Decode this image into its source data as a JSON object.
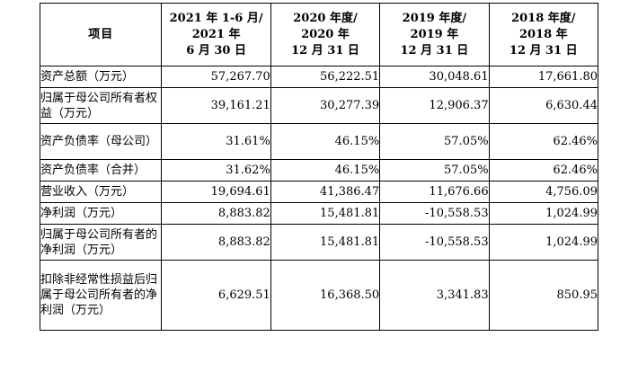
{
  "table": {
    "header": {
      "item": "项目",
      "col1": [
        "2021 年 1-6 月/",
        "2021 年",
        "6 月 30 日"
      ],
      "col2": [
        "2020 年度/",
        "2020 年",
        "12 月 31 日"
      ],
      "col3": [
        "2019 年度/",
        "2019 年",
        "12 月 31 日"
      ],
      "col4": [
        "2018 年度/",
        "2018 年",
        "12 月 31 日"
      ]
    },
    "rows": [
      {
        "label": "资产总额（万元）",
        "values": [
          "57,267.70",
          "56,222.51",
          "30,048.61",
          "17,661.80"
        ]
      },
      {
        "label": "归属于母公司所有者权益（万元）",
        "values": [
          "39,161.21",
          "30,277.39",
          "12,906.37",
          "6,630.44"
        ]
      },
      {
        "label": "资产负债率（母公司）",
        "values": [
          "31.61%",
          "46.15%",
          "57.05%",
          "62.46%"
        ]
      },
      {
        "label": "资产负债率（合并）",
        "values": [
          "31.62%",
          "46.15%",
          "57.05%",
          "62.46%"
        ]
      },
      {
        "label": "营业收入（万元）",
        "values": [
          "19,694.61",
          "41,386.47",
          "11,676.66",
          "4,756.09"
        ]
      },
      {
        "label": "净利润（万元）",
        "values": [
          "8,883.82",
          "15,481.81",
          "-10,558.53",
          "1,024.99"
        ]
      },
      {
        "label": "归属于母公司所有者的净利润（万元）",
        "values": [
          "8,883.82",
          "15,481.81",
          "-10,558.53",
          "1,024.99"
        ]
      },
      {
        "label": "扣除非经常性损益后归属于母公司所有者的净利润（万元）",
        "values": [
          "6,629.51",
          "16,368.50",
          "3,341.83",
          "850.95"
        ]
      }
    ]
  }
}
